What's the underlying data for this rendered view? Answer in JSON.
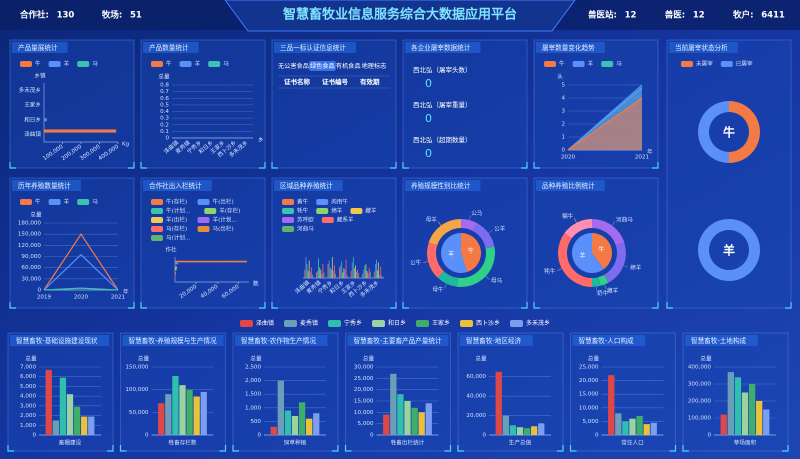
{
  "header": {
    "title": "智慧畜牧业信息服务综合大数据应用平台",
    "stats_left": [
      {
        "label": "合作社:",
        "value": 130
      },
      {
        "label": "牧场:",
        "value": 51
      }
    ],
    "stats_right": [
      {
        "label": "兽医站:",
        "value": 12
      },
      {
        "label": "兽医:",
        "value": 12
      },
      {
        "label": "牧户:",
        "value": 6411
      }
    ]
  },
  "town_legend": [
    {
      "name": "泽曲镇",
      "color": "#e04848"
    },
    {
      "name": "麦秀镇",
      "color": "#6b9fb8"
    },
    {
      "name": "宁秀乡",
      "color": "#2fbfae"
    },
    {
      "name": "和日乡",
      "color": "#9bd3a0"
    },
    {
      "name": "王家乡",
      "color": "#3fae6a"
    },
    {
      "name": "西卜沙乡",
      "color": "#e8c33a"
    },
    {
      "name": "多禾茂乡",
      "color": "#7b9df2"
    }
  ],
  "chart_data": [
    {
      "type": "hbar",
      "title": "产品量展统计",
      "ylabel": "乡镇",
      "xlabel": "Kg",
      "categories": [
        "泽曲镇",
        "和日乡",
        "王家乡",
        "多禾茂乡"
      ],
      "series": [
        {
          "name": "牛",
          "color": "#f47a45",
          "values": [
            390000,
            0,
            0,
            0
          ]
        },
        {
          "name": "羊",
          "color": "#5b8ff9",
          "values": [
            0,
            15000,
            0,
            0
          ]
        },
        {
          "name": "马",
          "color": "#3ec2b0",
          "values": [
            0,
            0,
            0,
            0
          ]
        }
      ],
      "xlim": [
        0,
        400000
      ],
      "xticks": [
        {
          "value": 100000,
          "label": "100,000"
        },
        {
          "value": 200000,
          "label": "200,000"
        },
        {
          "value": 300000,
          "label": "300,000"
        },
        {
          "value": 400000,
          "label": "400,000"
        }
      ]
    },
    {
      "type": "bar",
      "title": "产品数量统计",
      "ylabel": "总量",
      "xlabel": "乡",
      "categories": [
        "泽曲镇",
        "麦秀镇",
        "宁秀乡",
        "和日乡",
        "王家乡",
        "西卜沙乡",
        "多禾茂乡"
      ],
      "series": [
        {
          "name": "牛",
          "color": "#f47a45",
          "values": [
            0,
            0,
            0,
            0,
            0,
            0,
            0
          ]
        },
        {
          "name": "羊",
          "color": "#5b8ff9",
          "values": [
            0,
            0,
            0,
            0,
            0,
            0,
            0
          ]
        },
        {
          "name": "马",
          "color": "#3ec2b0",
          "values": [
            0,
            0,
            0,
            0,
            0,
            0,
            0
          ]
        }
      ],
      "ylim": [
        0,
        0.8
      ],
      "yticks": [
        0,
        0.1,
        0.2,
        0.3,
        0.4,
        0.5,
        0.6,
        0.7,
        0.8
      ]
    },
    {
      "type": "table",
      "title": "三品一标认证信息统计",
      "tabs": [
        "无公害食品",
        "绿色食品",
        "有机食品",
        "地理标志"
      ],
      "active_tab": 1,
      "columns": [
        "证书名称",
        "证书编号",
        "有效期"
      ]
    },
    {
      "type": "stats",
      "title": "各企业屠宰数据统计",
      "items": [
        {
          "label": "西北弘（屠宰头数）",
          "value": 0
        },
        {
          "label": "西北弘（屠宰重量）",
          "value": 0
        },
        {
          "label": "西北弘（超期数量）",
          "value": 0
        }
      ]
    },
    {
      "type": "area",
      "title": "屠宰数量变化趋势",
      "ylabel": "头",
      "xlabel": "年",
      "categories": [
        "2020",
        "2021"
      ],
      "series": [
        {
          "name": "牛",
          "color": "#f47a45",
          "values": [
            0,
            4
          ]
        },
        {
          "name": "羊",
          "color": "#5b8ff9",
          "values": [
            0,
            5
          ]
        },
        {
          "name": "马",
          "color": "#3ec2b0",
          "values": [
            0,
            4.8
          ]
        }
      ],
      "ylim": [
        0,
        5
      ],
      "yticks": [
        0,
        1,
        2,
        3,
        4,
        5
      ]
    },
    {
      "type": "pie",
      "title": "当前屠宰状态分析",
      "labels": [
        "未屠宰",
        "已屠宰"
      ],
      "colors": [
        "#f47a45",
        "#5b8ff9"
      ],
      "pies": [
        {
          "label": "牛",
          "values": [
            50,
            50
          ]
        },
        {
          "label": "羊",
          "values": [
            0,
            100
          ]
        }
      ]
    },
    {
      "type": "line",
      "title": "历年养殖数量统计",
      "ylabel": "总量",
      "xlabel": "年",
      "categories": [
        "2019",
        "2020",
        "2021"
      ],
      "series": [
        {
          "name": "牛",
          "color": "#f47a45",
          "values": [
            0,
            150000,
            0
          ]
        },
        {
          "name": "羊",
          "color": "#5b8ff9",
          "values": [
            0,
            95000,
            0
          ]
        },
        {
          "name": "马",
          "color": "#3ec2b0",
          "values": [
            0,
            5000,
            0
          ]
        }
      ],
      "ylim": [
        0,
        180000
      ],
      "yticks": [
        0,
        {
          "value": 30000,
          "label": "30,000"
        },
        {
          "value": 60000,
          "label": "60,000"
        },
        {
          "value": 90000,
          "label": "90,000"
        },
        {
          "value": 120000,
          "label": "120,000"
        },
        {
          "value": 150000,
          "label": "150,000"
        },
        {
          "value": 180000,
          "label": "180,000"
        }
      ]
    },
    {
      "type": "hbar",
      "title": "合作社出入栏统计",
      "ylabel": "作社",
      "xlabel": "数",
      "categories": [
        null
      ],
      "series": [
        {
          "name": "牛(存栏)",
          "color": "#f47a45",
          "values": [
            68000
          ]
        },
        {
          "name": "牛(出栏)",
          "color": "#5b8ff9",
          "values": [
            3000
          ]
        },
        {
          "name": "牛(计划...",
          "color": "#3ec2b0",
          "values": [
            0
          ]
        },
        {
          "name": "羊(存栏)",
          "color": "#8fd46a",
          "values": [
            2000
          ]
        },
        {
          "name": "羊(出栏)",
          "color": "#f2c94c",
          "values": [
            1500
          ]
        },
        {
          "name": "羊(计划...",
          "color": "#a36cf0",
          "values": [
            0
          ]
        },
        {
          "name": "马(存栏)",
          "color": "#ff6b6b",
          "values": [
            1000
          ]
        },
        {
          "name": "马(出栏)",
          "color": "#e88a3a",
          "values": [
            500
          ]
        },
        {
          "name": "马(计划...",
          "color": "#5fb36b",
          "values": [
            0
          ]
        }
      ],
      "xlim": [
        0,
        70000
      ],
      "xticks": [
        {
          "value": 20000,
          "label": "20,000"
        },
        {
          "value": 40000,
          "label": "40,000"
        },
        {
          "value": 60000,
          "label": "60,000"
        }
      ]
    },
    {
      "type": "bar",
      "title": "区域品种养殖统计",
      "categories": [
        "泽曲镇",
        "麦秀镇",
        "宁秀乡",
        "和日乡",
        "王家乡",
        "西卜沙乡",
        "多禾茂乡"
      ],
      "series": [
        {
          "name": "黄牛",
          "color": "#f47a45",
          "values": [
            12,
            8,
            20,
            15,
            10,
            6,
            9
          ]
        },
        {
          "name": "肉用牛",
          "color": "#5b8ff9",
          "values": [
            30,
            10,
            25,
            18,
            22,
            12,
            20
          ]
        },
        {
          "name": "牦牛",
          "color": "#3ec2b0",
          "values": [
            20,
            28,
            15,
            24,
            30,
            18,
            26
          ]
        },
        {
          "name": "绵羊",
          "color": "#8fd46a",
          "values": [
            10,
            15,
            12,
            8,
            14,
            20,
            11
          ]
        },
        {
          "name": "藏羊",
          "color": "#f2c94c",
          "values": [
            25,
            12,
            30,
            14,
            18,
            10,
            22
          ]
        },
        {
          "name": "苏呼欧",
          "color": "#a36cf0",
          "values": [
            8,
            6,
            10,
            12,
            9,
            7,
            5
          ]
        },
        {
          "name": "藏系羊",
          "color": "#ff6b6b",
          "values": [
            15,
            20,
            18,
            26,
            12,
            14,
            16
          ]
        },
        {
          "name": "河曲马",
          "color": "#5fb36b",
          "values": [
            5,
            8,
            6,
            4,
            7,
            9,
            3
          ]
        }
      ],
      "ylim": [
        0,
        40
      ]
    },
    {
      "type": "nested-pie",
      "title": "养殖规模性别比统计",
      "inner": {
        "labels": [
          "牛",
          "羊"
        ],
        "values": [
          45,
          55
        ],
        "colors": [
          "#f47a45",
          "#5b8ff9"
        ]
      },
      "outer": {
        "labels": [
          "公马",
          "公羊",
          "母马",
          "母牛",
          "公牛",
          "母羊"
        ],
        "values": [
          8,
          14,
          30,
          10,
          18,
          20
        ],
        "colors": [
          "#a36cf0",
          "#7b6cf0",
          "#2fd08a",
          "#1fb7a0",
          "#ff6b6b",
          "#f4a545"
        ]
      }
    },
    {
      "type": "nested-pie",
      "title": "品种养殖比例统计",
      "inner": {
        "labels": [
          "牛",
          "羊"
        ],
        "values": [
          40,
          60
        ],
        "colors": [
          "#f47a45",
          "#5b8ff9"
        ]
      },
      "outer": {
        "labels": [
          "河曲马",
          "绵羊",
          "藏羊",
          "奶牛",
          "牦牛",
          "犏牛"
        ],
        "values": [
          20,
          22,
          4,
          4,
          35,
          15
        ],
        "colors": [
          "#a36cf0",
          "#7b6cf0",
          "#2fd08a",
          "#1fb7a0",
          "#ff6b6b",
          "#ff8fb0"
        ]
      }
    },
    {
      "type": "bar",
      "title": "智慧畜牧-基础设施建设现状",
      "ylabel": "总量",
      "xlabel": "畜棚建设",
      "values": [
        6700,
        1500,
        5900,
        4200,
        2900,
        1900,
        1900
      ],
      "ylim": [
        0,
        7000
      ],
      "yticks": [
        0,
        {
          "value": 1000,
          "label": "1,000"
        },
        {
          "value": 2000,
          "label": "2,000"
        },
        {
          "value": 3000,
          "label": "3,000"
        },
        {
          "value": 4000,
          "label": "4,000"
        },
        {
          "value": 5000,
          "label": "5,000"
        },
        {
          "value": 6000,
          "label": "6,000"
        },
        {
          "value": 7000,
          "label": "7,000"
        }
      ]
    },
    {
      "type": "bar",
      "title": "智慧畜牧-养殖规模与生产情况",
      "ylabel": "总量",
      "xlabel": "牲畜存栏数",
      "values": [
        70000,
        90000,
        130000,
        110000,
        100000,
        85000,
        95000
      ],
      "ylim": [
        0,
        150000
      ],
      "yticks": [
        0,
        {
          "value": 50000,
          "label": "50,000"
        },
        {
          "value": 100000,
          "label": "100,000"
        },
        {
          "value": 150000,
          "label": "150,000"
        }
      ]
    },
    {
      "type": "bar",
      "title": "智慧畜牧-农作物生产情况",
      "ylabel": "总量",
      "xlabel": "饲草种植",
      "values": [
        300,
        2000,
        900,
        700,
        1200,
        600,
        800
      ],
      "ylim": [
        0,
        2500
      ],
      "yticks": [
        0,
        500,
        {
          "value": 1000,
          "label": "1,000"
        },
        {
          "value": 1500,
          "label": "1,500"
        },
        {
          "value": 2000,
          "label": "2,000"
        },
        {
          "value": 2500,
          "label": "2,500"
        }
      ]
    },
    {
      "type": "bar",
      "title": "智慧畜牧-主要畜产品产量统计",
      "ylabel": "总量",
      "xlabel": "牲畜出栏统计",
      "values": [
        9000,
        27000,
        18000,
        15000,
        12000,
        10000,
        14000
      ],
      "ylim": [
        0,
        30000
      ],
      "yticks": [
        0,
        {
          "value": 5000,
          "label": "5,000"
        },
        {
          "value": 10000,
          "label": "10,000"
        },
        {
          "value": 15000,
          "label": "15,000"
        },
        {
          "value": 20000,
          "label": "20,000"
        },
        {
          "value": 25000,
          "label": "25,000"
        },
        {
          "value": 30000,
          "label": "30,000"
        }
      ]
    },
    {
      "type": "bar",
      "title": "智慧畜牧-地区经济",
      "ylabel": "总量",
      "xlabel": "生产总值",
      "values": [
        65000,
        20000,
        10000,
        8000,
        7000,
        9000,
        12000
      ],
      "ylim": [
        0,
        70000
      ],
      "yticks": [
        0,
        {
          "value": 20000,
          "label": "20,000"
        },
        {
          "value": 40000,
          "label": "40,000"
        },
        {
          "value": 60000,
          "label": "60,000"
        }
      ]
    },
    {
      "type": "bar",
      "title": "智慧畜牧-人口构成",
      "ylabel": "总量",
      "xlabel": "常住人口",
      "values": [
        22000,
        8000,
        5000,
        6000,
        7000,
        4000,
        4500
      ],
      "ylim": [
        0,
        25000
      ],
      "yticks": [
        0,
        {
          "value": 5000,
          "label": "5,000"
        },
        {
          "value": 10000,
          "label": "10,000"
        },
        {
          "value": 15000,
          "label": "15,000"
        },
        {
          "value": 20000,
          "label": "20,000"
        },
        {
          "value": 25000,
          "label": "25,000"
        }
      ]
    },
    {
      "type": "bar",
      "title": "智慧畜牧-土地构成",
      "ylabel": "总量",
      "xlabel": "草场面积",
      "values": [
        120000,
        370000,
        340000,
        250000,
        300000,
        200000,
        150000
      ],
      "ylim": [
        0,
        400000
      ],
      "yticks": [
        0,
        {
          "value": 100000,
          "label": "100,000"
        },
        {
          "value": 200000,
          "label": "200,000"
        },
        {
          "value": 300000,
          "label": "300,000"
        },
        {
          "value": 400000,
          "label": "400,000"
        }
      ]
    }
  ]
}
